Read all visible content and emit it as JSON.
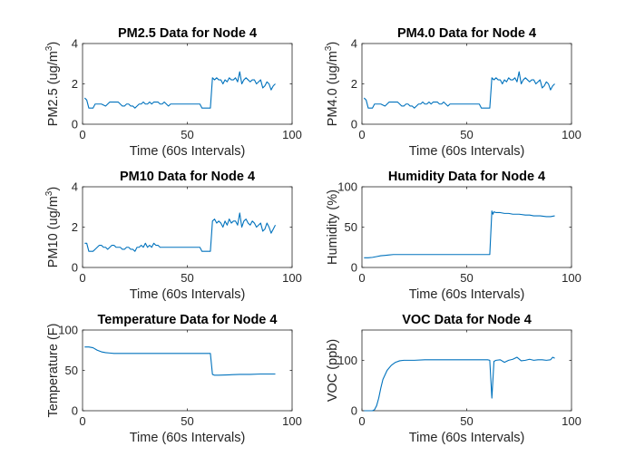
{
  "figure": {
    "background": "#ffffff",
    "line_color": "#0072BD",
    "axis_color": "#262626"
  },
  "chart_data": [
    {
      "type": "line",
      "title": "PM2.5 Data for Node 4",
      "xlabel": "Time (60s Intervals)",
      "ylabel_main": "PM2.5 (ug/m",
      "ylabel_sup": "3",
      "ylabel_end": ")",
      "xlim": [
        0,
        100
      ],
      "ylim": [
        0,
        4
      ],
      "xticks": [
        0,
        50,
        100
      ],
      "yticks": [
        0,
        2,
        4
      ],
      "xtick_labels": [
        "0",
        "50",
        "100"
      ],
      "ytick_labels": [
        "0",
        "2",
        "4"
      ],
      "grid": false,
      "series": [
        {
          "x": [
            1,
            2,
            3,
            4,
            5,
            6,
            7,
            8,
            9,
            10,
            11,
            12,
            13,
            14,
            15,
            16,
            17,
            18,
            19,
            20,
            21,
            22,
            23,
            24,
            25,
            26,
            27,
            28,
            29,
            30,
            31,
            32,
            33,
            34,
            35,
            36,
            37,
            38,
            39,
            40,
            41,
            42,
            43,
            44,
            45,
            46,
            47,
            48,
            49,
            50,
            51,
            52,
            53,
            54,
            55,
            56,
            57,
            58,
            59,
            60,
            61,
            62,
            63,
            64,
            65,
            66,
            67,
            68,
            69,
            70,
            71,
            72,
            73,
            74,
            75,
            76,
            77,
            78,
            79,
            80,
            81,
            82,
            83,
            84,
            85,
            86,
            87,
            88,
            89,
            90,
            91,
            92
          ],
          "y": [
            1.3,
            1.2,
            0.8,
            0.8,
            0.8,
            1.0,
            1.0,
            1.0,
            1.0,
            0.95,
            0.9,
            1.0,
            1.1,
            1.1,
            1.1,
            1.1,
            1.1,
            1.0,
            0.9,
            0.9,
            1.0,
            1.0,
            0.9,
            0.9,
            0.8,
            0.9,
            1.0,
            1.0,
            1.1,
            1.0,
            1.0,
            1.1,
            1.0,
            1.1,
            1.1,
            1.1,
            1.0,
            1.0,
            1.1,
            1.0,
            0.9,
            1.0,
            1.0,
            1.0,
            1.0,
            1.0,
            1.0,
            1.0,
            1.0,
            1.0,
            1.0,
            1.0,
            1.0,
            1.0,
            1.0,
            1.0,
            0.8,
            0.8,
            0.8,
            0.8,
            0.8,
            2.3,
            2.2,
            2.3,
            2.2,
            2.2,
            2.0,
            2.2,
            2.1,
            2.3,
            2.2,
            2.2,
            2.3,
            2.1,
            2.6,
            2.0,
            2.2,
            2.3,
            2.2,
            2.1,
            2.2,
            2.2,
            2.0,
            2.1,
            2.2,
            1.8,
            1.9,
            2.1,
            2.0,
            1.7,
            1.9,
            2.0
          ]
        }
      ]
    },
    {
      "type": "line",
      "title": "PM4.0 Data for Node 4",
      "xlabel": "Time (60s Intervals)",
      "ylabel_main": "PM4.0 (ug/m",
      "ylabel_sup": "3",
      "ylabel_end": ")",
      "xlim": [
        0,
        100
      ],
      "ylim": [
        0,
        4
      ],
      "xticks": [
        0,
        50,
        100
      ],
      "yticks": [
        0,
        2,
        4
      ],
      "xtick_labels": [
        "0",
        "50",
        "100"
      ],
      "ytick_labels": [
        "0",
        "2",
        "4"
      ],
      "grid": false,
      "series": [
        {
          "x": [
            1,
            2,
            3,
            4,
            5,
            6,
            7,
            8,
            9,
            10,
            11,
            12,
            13,
            14,
            15,
            16,
            17,
            18,
            19,
            20,
            21,
            22,
            23,
            24,
            25,
            26,
            27,
            28,
            29,
            30,
            31,
            32,
            33,
            34,
            35,
            36,
            37,
            38,
            39,
            40,
            41,
            42,
            43,
            44,
            45,
            46,
            47,
            48,
            49,
            50,
            51,
            52,
            53,
            54,
            55,
            56,
            57,
            58,
            59,
            60,
            61,
            62,
            63,
            64,
            65,
            66,
            67,
            68,
            69,
            70,
            71,
            72,
            73,
            74,
            75,
            76,
            77,
            78,
            79,
            80,
            81,
            82,
            83,
            84,
            85,
            86,
            87,
            88,
            89,
            90,
            91,
            92
          ],
          "y": [
            1.3,
            1.2,
            0.8,
            0.8,
            0.8,
            1.0,
            1.0,
            1.0,
            1.0,
            0.95,
            0.9,
            1.0,
            1.1,
            1.1,
            1.1,
            1.1,
            1.1,
            1.0,
            0.9,
            0.9,
            1.0,
            1.0,
            0.9,
            0.9,
            0.8,
            0.9,
            1.0,
            1.0,
            1.1,
            1.0,
            1.0,
            1.1,
            1.0,
            1.1,
            1.1,
            1.1,
            1.0,
            1.0,
            1.1,
            1.0,
            0.9,
            1.0,
            1.0,
            1.0,
            1.0,
            1.0,
            1.0,
            1.0,
            1.0,
            1.0,
            1.0,
            1.0,
            1.0,
            1.0,
            1.0,
            1.0,
            0.8,
            0.8,
            0.8,
            0.8,
            0.8,
            2.3,
            2.2,
            2.3,
            2.2,
            2.2,
            2.0,
            2.2,
            2.1,
            2.3,
            2.2,
            2.2,
            2.3,
            2.1,
            2.6,
            2.0,
            2.2,
            2.3,
            2.2,
            2.1,
            2.2,
            2.2,
            2.0,
            2.1,
            2.2,
            1.8,
            1.9,
            2.1,
            2.0,
            1.7,
            1.9,
            2.0
          ]
        }
      ]
    },
    {
      "type": "line",
      "title": "PM10 Data for Node 4",
      "xlabel": "Time (60s Intervals)",
      "ylabel_main": "PM10 (ug/m",
      "ylabel_sup": "3",
      "ylabel_end": ")",
      "xlim": [
        0,
        100
      ],
      "ylim": [
        0,
        4
      ],
      "xticks": [
        0,
        50,
        100
      ],
      "yticks": [
        0,
        2,
        4
      ],
      "xtick_labels": [
        "0",
        "50",
        "100"
      ],
      "ytick_labels": [
        "0",
        "2",
        "4"
      ],
      "grid": false,
      "series": [
        {
          "x": [
            1,
            2,
            3,
            4,
            5,
            6,
            7,
            8,
            9,
            10,
            11,
            12,
            13,
            14,
            15,
            16,
            17,
            18,
            19,
            20,
            21,
            22,
            23,
            24,
            25,
            26,
            27,
            28,
            29,
            30,
            31,
            32,
            33,
            34,
            35,
            36,
            37,
            38,
            39,
            40,
            41,
            42,
            43,
            44,
            45,
            46,
            47,
            48,
            49,
            50,
            51,
            52,
            53,
            54,
            55,
            56,
            57,
            58,
            59,
            60,
            61,
            62,
            63,
            64,
            65,
            66,
            67,
            68,
            69,
            70,
            71,
            72,
            73,
            74,
            75,
            76,
            77,
            78,
            79,
            80,
            81,
            82,
            83,
            84,
            85,
            86,
            87,
            88,
            89,
            90,
            91,
            92
          ],
          "y": [
            1.2,
            1.2,
            0.8,
            0.8,
            0.8,
            0.9,
            1.0,
            1.1,
            1.1,
            1.0,
            1.0,
            0.9,
            1.0,
            1.1,
            1.1,
            1.0,
            1.0,
            1.0,
            0.9,
            0.9,
            1.0,
            1.0,
            0.9,
            0.9,
            0.8,
            1.0,
            1.0,
            1.1,
            1.0,
            1.2,
            1.0,
            1.1,
            1.0,
            1.2,
            1.1,
            1.1,
            1.0,
            1.0,
            1.0,
            1.0,
            1.0,
            1.0,
            1.0,
            1.0,
            1.0,
            1.0,
            1.0,
            1.0,
            1.0,
            1.0,
            1.0,
            1.0,
            1.0,
            1.0,
            1.0,
            1.0,
            0.8,
            0.8,
            0.8,
            0.8,
            0.8,
            2.3,
            2.4,
            2.2,
            2.3,
            2.2,
            2.0,
            2.3,
            2.1,
            2.4,
            2.2,
            2.3,
            2.3,
            2.1,
            2.7,
            2.0,
            2.3,
            2.4,
            2.2,
            2.1,
            2.3,
            2.2,
            2.0,
            2.1,
            2.2,
            1.8,
            1.9,
            2.2,
            2.0,
            1.7,
            1.9,
            2.1
          ]
        }
      ]
    },
    {
      "type": "line",
      "title": "Humidity Data for Node 4",
      "xlabel": "Time (60s Intervals)",
      "ylabel_main": "Humidity (%)",
      "ylabel_sup": "",
      "ylabel_end": "",
      "xlim": [
        0,
        100
      ],
      "ylim": [
        0,
        100
      ],
      "xticks": [
        0,
        50,
        100
      ],
      "yticks": [
        0,
        50,
        100
      ],
      "xtick_labels": [
        "0",
        "50",
        "100"
      ],
      "ytick_labels": [
        "0",
        "50",
        "100"
      ],
      "grid": false,
      "series": [
        {
          "x": [
            1,
            3,
            5,
            7,
            9,
            11,
            13,
            15,
            20,
            30,
            40,
            50,
            55,
            60,
            61,
            62,
            62.5,
            63,
            64,
            66,
            68,
            70,
            72,
            75,
            78,
            80,
            82,
            85,
            88,
            90,
            92
          ],
          "y": [
            12,
            12,
            12.5,
            13.5,
            14.5,
            15,
            15.5,
            16,
            16,
            16,
            16,
            16,
            16,
            16,
            16,
            70,
            66,
            69,
            68,
            68,
            67,
            67,
            66,
            66,
            65,
            65,
            64,
            64,
            63,
            63,
            64
          ]
        }
      ]
    },
    {
      "type": "line",
      "title": "Temperature Data for Node 4",
      "xlabel": "Time (60s Intervals)",
      "ylabel_main": "Temperature (F)",
      "ylabel_sup": "",
      "ylabel_end": "",
      "xlim": [
        0,
        100
      ],
      "ylim": [
        0,
        100
      ],
      "xticks": [
        0,
        50,
        100
      ],
      "yticks": [
        0,
        50,
        100
      ],
      "xtick_labels": [
        "0",
        "50",
        "100"
      ],
      "ytick_labels": [
        "0",
        "50",
        "100"
      ],
      "grid": false,
      "series": [
        {
          "x": [
            1,
            3,
            5,
            7,
            9,
            11,
            13,
            15,
            20,
            30,
            40,
            50,
            55,
            60,
            61,
            62,
            63,
            65,
            70,
            75,
            80,
            85,
            90,
            92
          ],
          "y": [
            79,
            79,
            78,
            75,
            73,
            72,
            71.5,
            71,
            71,
            71,
            71,
            71,
            71,
            71,
            71,
            45,
            44,
            44,
            44.5,
            45,
            45,
            45.5,
            45.5,
            45.5
          ]
        }
      ]
    },
    {
      "type": "line",
      "title": "VOC Data for Node 4",
      "xlabel": "Time (60s Intervals)",
      "ylabel_main": "VOC (ppb)",
      "ylabel_sup": "",
      "ylabel_end": "",
      "xlim": [
        0,
        100
      ],
      "ylim": [
        0,
        160
      ],
      "xticks": [
        0,
        50,
        100
      ],
      "yticks": [
        0,
        100
      ],
      "xtick_labels": [
        "0",
        "50",
        "100"
      ],
      "ytick_labels": [
        "0",
        "100"
      ],
      "grid": false,
      "series": [
        {
          "x": [
            1,
            3,
            5,
            6,
            7,
            8,
            9,
            10,
            12,
            14,
            16,
            18,
            20,
            25,
            30,
            40,
            50,
            55,
            60,
            61,
            62,
            63,
            64,
            66,
            68,
            70,
            72,
            74,
            76,
            78,
            80,
            82,
            84,
            86,
            88,
            90,
            91,
            92
          ],
          "y": [
            0,
            0,
            0,
            2,
            10,
            25,
            45,
            62,
            80,
            90,
            96,
            99,
            100,
            100,
            101,
            101,
            101,
            101,
            101,
            100,
            25,
            98,
            100,
            101,
            96,
            100,
            102,
            106,
            99,
            100,
            102,
            100,
            101,
            101,
            100,
            101,
            106,
            104
          ]
        }
      ]
    }
  ]
}
